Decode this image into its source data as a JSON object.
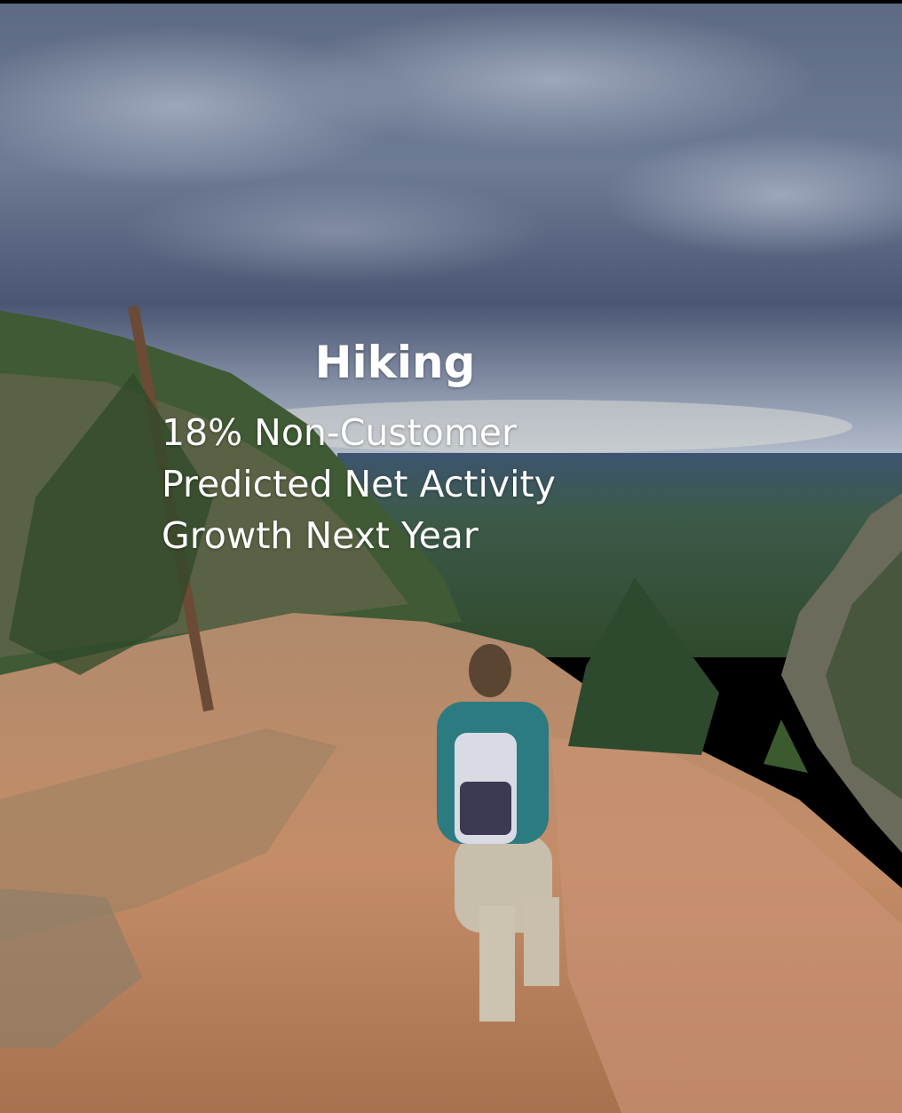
{
  "title": "Hiking",
  "body_lines": [
    "18% Non-Customer",
    "Predicted Net Activity",
    "Growth Next Year"
  ]
}
